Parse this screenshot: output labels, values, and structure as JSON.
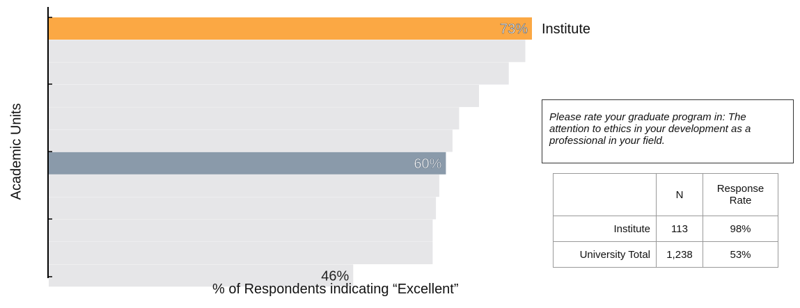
{
  "chart_data": {
    "type": "bar",
    "orientation": "horizontal",
    "ylabel": "Academic Units",
    "xlabel": "% of Respondents indicating “Excellent”",
    "categories": [
      "Institute",
      "",
      "",
      "",
      "",
      "",
      "",
      "",
      "",
      "",
      "",
      ""
    ],
    "values": [
      73,
      72,
      69.5,
      65,
      62,
      61,
      60,
      59,
      58.5,
      58,
      58,
      46
    ],
    "bar_labels": [
      "73%",
      "",
      "",
      "",
      "",
      "",
      "60%",
      "",
      "",
      "",
      "",
      "46%"
    ],
    "highlight": [
      {
        "index": 0,
        "color": "#FBA844",
        "label": "Institute"
      },
      {
        "index": 6,
        "color": "#8A9AAA"
      }
    ],
    "default_bar_color": "#E6E6E8",
    "xlim": [
      0,
      100
    ],
    "grid": false
  },
  "question_box": {
    "text": "Please rate your graduate program in: The attention to ethics in your development as a professional in your field."
  },
  "stats_table": {
    "headers": [
      "",
      "N",
      "Response Rate"
    ],
    "rows": [
      {
        "label": "Institute",
        "n": "113",
        "rate": "98%"
      },
      {
        "label": "University Total",
        "n": "1,238",
        "rate": "53%"
      }
    ]
  }
}
